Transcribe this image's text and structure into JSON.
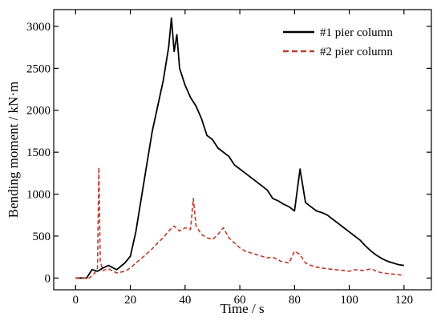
{
  "chart_data": {
    "type": "line",
    "xlabel": "Time / s",
    "ylabel": "Bending moment / kN·m",
    "xlim": [
      -8,
      130
    ],
    "ylim": [
      -140,
      3200
    ],
    "xticks": [
      0,
      20,
      40,
      60,
      80,
      100,
      120
    ],
    "yticks": [
      0,
      500,
      1000,
      1500,
      2000,
      2500,
      3000
    ],
    "grid": false,
    "legend_position": "top-right",
    "series": [
      {
        "name": "#1 pier column",
        "color": "#000000",
        "style": "solid",
        "x": [
          0,
          4,
          6,
          8,
          10,
          12,
          15,
          18,
          20,
          22,
          24,
          26,
          28,
          30,
          32,
          34,
          35,
          36,
          37,
          38,
          40,
          42,
          44,
          46,
          48,
          50,
          52,
          54,
          56,
          58,
          60,
          62,
          64,
          66,
          68,
          70,
          72,
          74,
          76,
          78,
          80,
          82,
          84,
          86,
          88,
          90,
          92,
          94,
          96,
          98,
          100,
          102,
          104,
          106,
          108,
          110,
          112,
          114,
          116,
          118,
          120
        ],
        "y": [
          0,
          0,
          100,
          80,
          120,
          150,
          100,
          180,
          260,
          550,
          950,
          1350,
          1750,
          2050,
          2350,
          2750,
          3100,
          2700,
          2900,
          2500,
          2300,
          2150,
          2050,
          1900,
          1700,
          1650,
          1550,
          1500,
          1450,
          1350,
          1300,
          1250,
          1200,
          1150,
          1100,
          1050,
          950,
          920,
          880,
          850,
          800,
          1300,
          900,
          850,
          800,
          780,
          750,
          700,
          650,
          600,
          550,
          500,
          450,
          380,
          320,
          270,
          230,
          200,
          180,
          160,
          150
        ]
      },
      {
        "name": "#2 pier column",
        "color": "#c0392b",
        "style": "dashed",
        "x": [
          0,
          5,
          7,
          8,
          8.5,
          9,
          10,
          12,
          15,
          18,
          20,
          22,
          25,
          28,
          30,
          32,
          34,
          36,
          38,
          40,
          42,
          43,
          44,
          46,
          48,
          50,
          52,
          54,
          55,
          56,
          58,
          60,
          62,
          64,
          66,
          68,
          70,
          72,
          75,
          78,
          80,
          82,
          84,
          86,
          88,
          90,
          92,
          95,
          98,
          100,
          102,
          105,
          108,
          110,
          112,
          115,
          118,
          120
        ],
        "y": [
          0,
          0,
          60,
          120,
          1320,
          200,
          90,
          110,
          60,
          80,
          120,
          180,
          260,
          350,
          420,
          480,
          560,
          620,
          560,
          600,
          580,
          950,
          620,
          520,
          480,
          460,
          520,
          600,
          540,
          480,
          420,
          360,
          320,
          300,
          280,
          260,
          240,
          250,
          200,
          180,
          320,
          280,
          180,
          150,
          130,
          120,
          110,
          100,
          90,
          80,
          100,
          90,
          110,
          80,
          60,
          50,
          40,
          30
        ]
      }
    ]
  }
}
